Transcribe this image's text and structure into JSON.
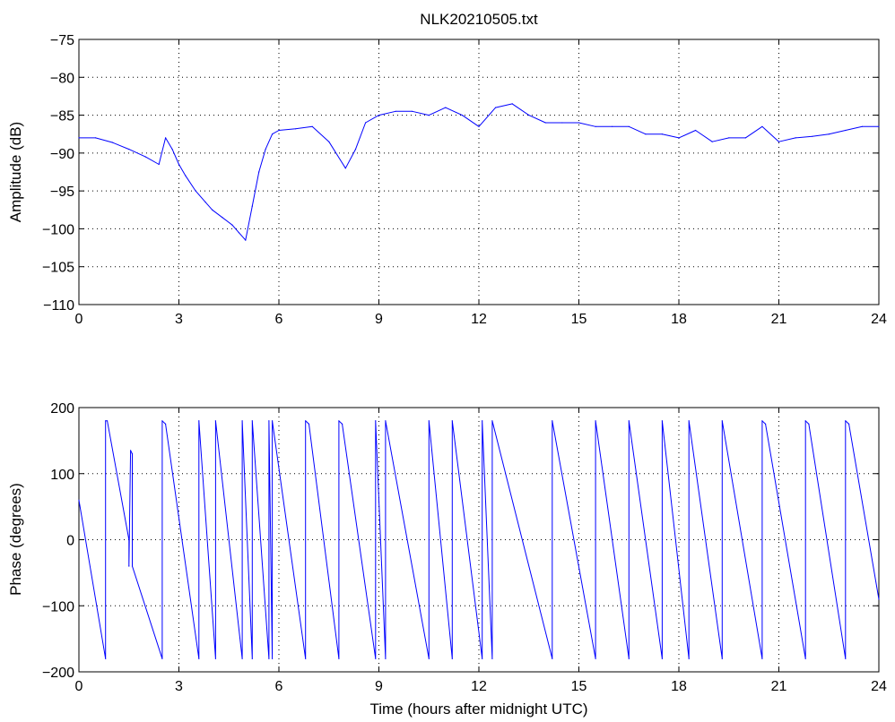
{
  "figure": {
    "title": "NLK20210505.txt"
  },
  "colors": {
    "trace": "#0000ff",
    "axes": "#000000",
    "background": "#ffffff"
  },
  "chart_data": [
    {
      "type": "line",
      "title": "NLK20210505.txt",
      "xlabel": "",
      "ylabel": "Amplitude (dB)",
      "xlim": [
        0,
        24
      ],
      "ylim": [
        -110,
        -75
      ],
      "xticks": [
        0,
        3,
        6,
        9,
        12,
        15,
        18,
        21,
        24
      ],
      "yticks": [
        -110,
        -105,
        -100,
        -95,
        -90,
        -85,
        -80,
        -75
      ],
      "xtick_labels": [
        "0",
        "3",
        "6",
        "9",
        "12",
        "15",
        "18",
        "21",
        "24"
      ],
      "ytick_labels": [
        "−110",
        "−105",
        "−100",
        "−95",
        "−90",
        "−85",
        "−80",
        "−75"
      ],
      "grid": true,
      "series": [
        {
          "x": [
            0,
            0.5,
            1.0,
            1.5,
            2.0,
            2.4,
            2.6,
            2.8,
            3.0,
            3.2,
            3.5,
            3.8,
            4.0,
            4.3,
            4.6,
            4.8,
            5.0,
            5.2,
            5.4,
            5.6,
            5.8,
            6.0,
            6.5,
            7.0,
            7.5,
            8.0,
            8.3,
            8.6,
            9.0,
            9.5,
            10.0,
            10.5,
            11.0,
            11.5,
            12.0,
            12.5,
            13.0,
            13.5,
            14.0,
            14.5,
            15.0,
            15.5,
            16.0,
            16.5,
            17.0,
            17.5,
            18.0,
            18.5,
            19.0,
            19.5,
            20.0,
            20.5,
            21.0,
            21.5,
            22.0,
            22.5,
            23.0,
            23.5,
            24.0
          ],
          "y": [
            -88.0,
            -88.0,
            -88.6,
            -89.5,
            -90.5,
            -91.5,
            -88.0,
            -89.5,
            -91.5,
            -93.0,
            -95.0,
            -96.5,
            -97.5,
            -98.5,
            -99.5,
            -100.5,
            -101.5,
            -97.0,
            -92.5,
            -89.5,
            -87.5,
            -87.0,
            -86.8,
            -86.5,
            -88.5,
            -92.0,
            -89.5,
            -86.0,
            -85.0,
            -84.5,
            -84.5,
            -85.0,
            -84.0,
            -85.0,
            -86.5,
            -84.0,
            -83.5,
            -85.0,
            -86.0,
            -86.0,
            -86.0,
            -86.5,
            -86.5,
            -86.5,
            -87.5,
            -87.5,
            -88.0,
            -87.0,
            -88.5,
            -88.0,
            -88.0,
            -86.5,
            -88.5,
            -88.0,
            -87.8,
            -87.5,
            -87.0,
            -86.5,
            -86.5
          ]
        }
      ],
      "annotations": []
    },
    {
      "type": "line",
      "title": "",
      "xlabel": "Time (hours after midnight UTC)",
      "ylabel": "Phase (degrees)",
      "xlim": [
        0,
        24
      ],
      "ylim": [
        -200,
        200
      ],
      "xticks": [
        0,
        3,
        6,
        9,
        12,
        15,
        18,
        21,
        24
      ],
      "yticks": [
        -200,
        -100,
        0,
        100,
        200
      ],
      "xtick_labels": [
        "0",
        "3",
        "6",
        "9",
        "12",
        "15",
        "18",
        "21",
        "24"
      ],
      "ytick_labels": [
        "−200",
        "−100",
        "0",
        "100",
        "200"
      ],
      "grid": true,
      "series": [
        {
          "x": [
            0,
            0.8,
            0.8,
            0.85,
            1.5,
            1.5,
            1.55,
            1.6,
            1.6,
            2.5,
            2.5,
            2.6,
            3.6,
            3.6,
            4.1,
            4.1,
            4.9,
            4.9,
            5.2,
            5.2,
            5.7,
            5.7,
            5.8,
            5.8,
            6.8,
            6.8,
            6.9,
            7.8,
            7.8,
            7.9,
            8.9,
            8.9,
            9.2,
            9.2,
            10.5,
            10.5,
            11.2,
            11.2,
            12.1,
            12.1,
            12.4,
            12.4,
            14.2,
            14.2,
            15.5,
            15.5,
            16.5,
            16.5,
            17.5,
            17.5,
            18.3,
            18.3,
            19.3,
            19.3,
            20.5,
            20.5,
            20.6,
            21.8,
            21.8,
            21.9,
            23.0,
            23.0,
            23.1,
            24.0
          ],
          "y": [
            60,
            -180,
            180,
            180,
            0,
            -40,
            135,
            130,
            -40,
            -180,
            180,
            175,
            -180,
            180,
            -180,
            180,
            -180,
            180,
            -180,
            180,
            -180,
            180,
            -180,
            180,
            -180,
            180,
            175,
            -180,
            180,
            175,
            -180,
            180,
            -180,
            180,
            -180,
            180,
            -180,
            180,
            -180,
            180,
            -180,
            180,
            -180,
            180,
            -180,
            180,
            -180,
            180,
            -180,
            180,
            -180,
            180,
            -180,
            180,
            -180,
            180,
            175,
            -180,
            180,
            175,
            -180,
            180,
            175,
            -90
          ]
        }
      ],
      "annotations": []
    }
  ]
}
